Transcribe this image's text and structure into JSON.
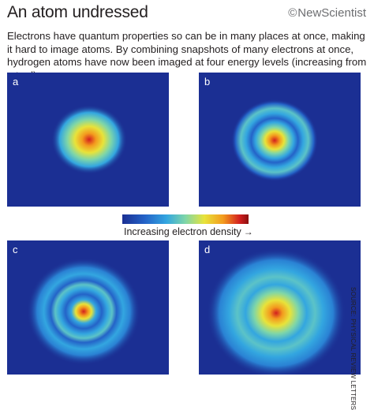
{
  "header": {
    "title": "An atom undressed",
    "logo_symbol": "©",
    "logo_text": "NewScientist"
  },
  "intro": "Electrons have quantum properties so can be in many places at once, making it hard to image atoms. By combining snapshots of many electrons at once, hydrogen atoms have now been imaged at four energy levels (increasing from a to d)",
  "panels": [
    {
      "label": "a"
    },
    {
      "label": "b"
    },
    {
      "label": "c"
    },
    {
      "label": "d"
    }
  ],
  "colorbar": {
    "label": "Increasing electron density",
    "arrow": "→",
    "colors": [
      "#1b2f93",
      "#2463c8",
      "#33a6e0",
      "#7fd6a8",
      "#e8e33a",
      "#f39a1e",
      "#d21f1f",
      "#8b1010"
    ]
  },
  "source": "SOURCE: PHYSICAL REVIEW LETTERS"
}
